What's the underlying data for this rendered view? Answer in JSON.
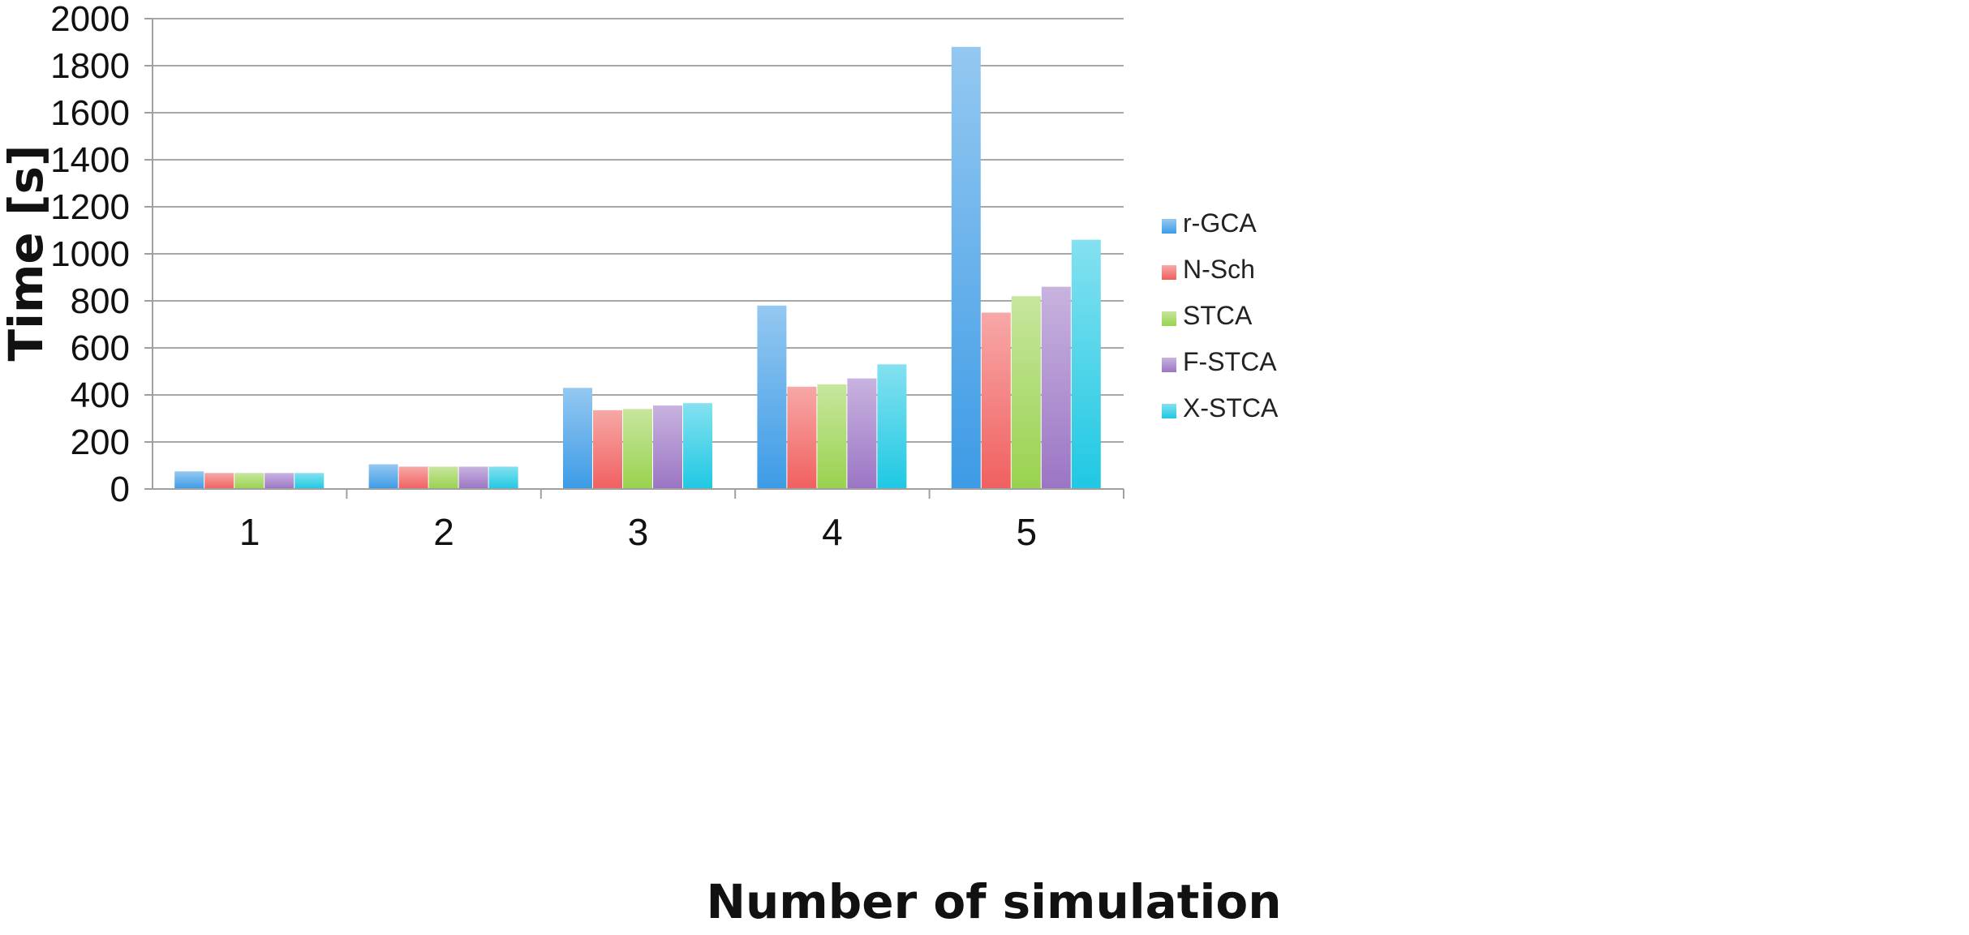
{
  "chart_data": {
    "type": "bar",
    "title": "",
    "xlabel": "Number of simulation",
    "ylabel": "Time [s]",
    "categories": [
      "1",
      "2",
      "3",
      "4",
      "5"
    ],
    "ylim": [
      0,
      2000
    ],
    "yticks": [
      0,
      200,
      400,
      600,
      800,
      1000,
      1200,
      1400,
      1600,
      1800,
      2000
    ],
    "grid": "horizontal",
    "legend_position": "right",
    "series": [
      {
        "name": "r-GCA",
        "color": "#3d9be6",
        "values": [
          75,
          105,
          430,
          780,
          1880
        ]
      },
      {
        "name": "N-Sch",
        "color": "#f0605f",
        "values": [
          68,
          95,
          335,
          435,
          750
        ]
      },
      {
        "name": "STCA",
        "color": "#99d24e",
        "values": [
          68,
          95,
          340,
          445,
          820
        ]
      },
      {
        "name": "F-STCA",
        "color": "#9b75c4",
        "values": [
          68,
          95,
          355,
          470,
          860
        ]
      },
      {
        "name": "X-STCA",
        "color": "#1fc8e3",
        "values": [
          68,
          95,
          365,
          530,
          1060
        ]
      }
    ]
  }
}
